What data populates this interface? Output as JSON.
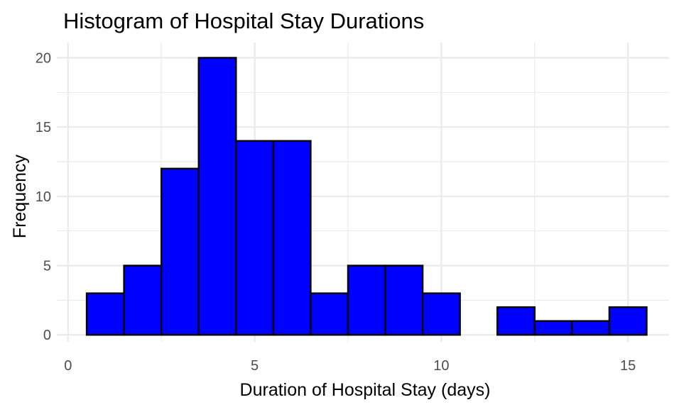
{
  "chart_data": {
    "type": "bar",
    "title": "Histogram of Hospital Stay Durations",
    "xlabel": "Duration of Hospital Stay (days)",
    "ylabel": "Frequency",
    "xlim": [
      -0.3,
      16.1
    ],
    "ylim": [
      -0.5,
      21.1
    ],
    "x_ticks": [
      0,
      5,
      10,
      15
    ],
    "y_ticks": [
      0,
      5,
      10,
      15,
      20
    ],
    "bins": [
      {
        "x0": 0.5,
        "x1": 1.5,
        "count": 3
      },
      {
        "x0": 1.5,
        "x1": 2.5,
        "count": 5
      },
      {
        "x0": 2.5,
        "x1": 3.5,
        "count": 12
      },
      {
        "x0": 3.5,
        "x1": 4.5,
        "count": 20
      },
      {
        "x0": 4.5,
        "x1": 5.5,
        "count": 14
      },
      {
        "x0": 5.5,
        "x1": 6.5,
        "count": 14
      },
      {
        "x0": 6.5,
        "x1": 7.5,
        "count": 3
      },
      {
        "x0": 7.5,
        "x1": 8.5,
        "count": 5
      },
      {
        "x0": 8.5,
        "x1": 9.5,
        "count": 5
      },
      {
        "x0": 9.5,
        "x1": 10.5,
        "count": 3
      },
      {
        "x0": 10.5,
        "x1": 11.5,
        "count": 0
      },
      {
        "x0": 11.5,
        "x1": 12.5,
        "count": 2
      },
      {
        "x0": 12.5,
        "x1": 13.5,
        "count": 1
      },
      {
        "x0": 13.5,
        "x1": 14.5,
        "count": 1
      },
      {
        "x0": 14.5,
        "x1": 15.5,
        "count": 2
      }
    ],
    "bar_fill": "#0000ff",
    "bar_stroke": "#000000",
    "grid": true,
    "grid_color": "#ebebeb"
  }
}
